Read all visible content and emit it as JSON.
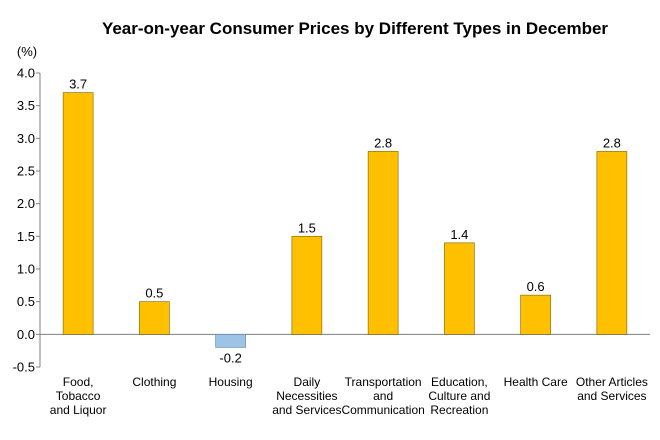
{
  "chart_data": {
    "type": "bar",
    "title": "Year-on-year Consumer Prices by Different Types in December",
    "ylabel": "(%)",
    "xlabel": "",
    "ylim": [
      -0.5,
      4.0
    ],
    "yticks": [
      "4.0",
      "3.5",
      "3.0",
      "2.5",
      "2.0",
      "1.5",
      "1.0",
      "0.5",
      "0.0",
      "-0.5"
    ],
    "grid": false,
    "categories": [
      [
        "Food,",
        "Tobacco",
        "and Liquor"
      ],
      [
        "Clothing"
      ],
      [
        "Housing"
      ],
      [
        "Daily",
        "Necessities",
        "and Services"
      ],
      [
        "Transportation",
        "and",
        "Communication"
      ],
      [
        "Education,",
        "Culture and",
        "Recreation"
      ],
      [
        "Health Care"
      ],
      [
        "Other Articles",
        "and Services"
      ]
    ],
    "values": [
      3.7,
      0.5,
      -0.2,
      1.5,
      2.8,
      1.4,
      0.6,
      2.8
    ],
    "data_labels": [
      "3.7",
      "0.5",
      "-0.2",
      "1.5",
      "2.8",
      "1.4",
      "0.6",
      "2.8"
    ],
    "colors": {
      "positive": "#FFC000",
      "negative": "#9DC3E6",
      "bar_edge": "#7F6000",
      "neg_edge": "#5B7FA6",
      "axis": "#808080"
    }
  }
}
